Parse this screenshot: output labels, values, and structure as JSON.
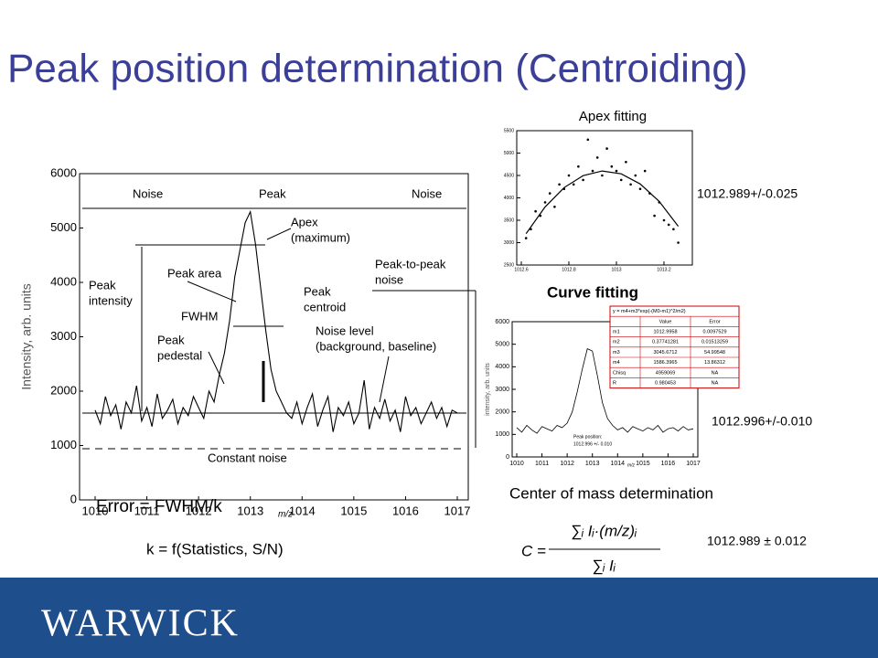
{
  "title": "Peak position determination (Centroiding)",
  "chart_data": [
    {
      "type": "line",
      "xlabel": "m/z",
      "ylabel": "Intensity, arb. units",
      "color": "#000000",
      "x": [
        1010,
        1010.1,
        1010.2,
        1010.3,
        1010.4,
        1010.5,
        1010.6,
        1010.7,
        1010.8,
        1010.9,
        1011,
        1011.1,
        1011.2,
        1011.3,
        1011.4,
        1011.5,
        1011.6,
        1011.7,
        1011.8,
        1011.9,
        1012,
        1012.1,
        1012.2,
        1012.3,
        1012.4,
        1012.5,
        1012.6,
        1012.7,
        1012.8,
        1012.9,
        1013,
        1013.1,
        1013.2,
        1013.3,
        1013.4,
        1013.5,
        1013.6,
        1013.7,
        1013.8,
        1013.9,
        1014,
        1014.1,
        1014.2,
        1014.3,
        1014.4,
        1014.5,
        1014.6,
        1014.7,
        1014.8,
        1014.9,
        1015,
        1015.1,
        1015.2,
        1015.3,
        1015.4,
        1015.5,
        1015.6,
        1015.7,
        1015.8,
        1015.9,
        1016,
        1016.1,
        1016.2,
        1016.3,
        1016.4,
        1016.5,
        1016.6,
        1016.7,
        1016.8,
        1016.9,
        1017
      ],
      "values": [
        1650,
        1400,
        1900,
        1550,
        1750,
        1300,
        1800,
        1600,
        2100,
        1450,
        1700,
        1350,
        1950,
        1500,
        1650,
        1850,
        1400,
        1700,
        1550,
        1900,
        1700,
        1500,
        2000,
        1800,
        2300,
        2700,
        3300,
        4100,
        4600,
        5100,
        5300,
        4700,
        3900,
        3100,
        2400,
        2000,
        1800,
        1600,
        1500,
        1800,
        1400,
        1700,
        1950,
        1350,
        1650,
        1900,
        1250,
        1700,
        1550,
        1800,
        1400,
        1600,
        2200,
        1300,
        1700,
        1500,
        1850,
        1450,
        1650,
        1250,
        1900,
        1550,
        1700,
        1400,
        1600,
        1800,
        1500,
        1700,
        1350,
        1650,
        1600
      ],
      "xlim": [
        1010,
        1017
      ],
      "xticks": [
        1010,
        1011,
        1012,
        1013,
        1014,
        1015,
        1016,
        1017
      ],
      "ylim": [
        0,
        6000
      ],
      "yticks": [
        0,
        1000,
        2000,
        3000,
        4000,
        5000,
        6000
      ],
      "annotations": [
        [
          "Noise"
        ],
        [
          "Peak"
        ],
        [
          "Noise"
        ],
        [
          "Apex",
          "(maximum)"
        ],
        [
          "Peak area"
        ],
        [
          "Peak",
          "intensity"
        ],
        [
          "FWHM"
        ],
        [
          "Peak",
          "centroid"
        ],
        [
          "Peak-to-peak",
          "noise"
        ],
        [
          "Noise level",
          "(background, baseline)"
        ],
        [
          "Peak",
          "pedestal"
        ],
        [
          "Constant noise"
        ]
      ]
    },
    {
      "type": "scatter",
      "title": "Apex fitting",
      "color": "#000000",
      "x": [
        1012.62,
        1012.64,
        1012.66,
        1012.68,
        1012.7,
        1012.72,
        1012.74,
        1012.76,
        1012.78,
        1012.8,
        1012.82,
        1012.84,
        1012.86,
        1012.88,
        1012.9,
        1012.92,
        1012.94,
        1012.96,
        1012.98,
        1013,
        1013.02,
        1013.04,
        1013.06,
        1013.08,
        1013.1,
        1013.12,
        1013.14,
        1013.16,
        1013.18,
        1013.2,
        1013.22,
        1013.24,
        1013.26
      ],
      "values": [
        3100,
        3300,
        3700,
        3600,
        3900,
        4100,
        3800,
        4300,
        4200,
        4500,
        4300,
        4700,
        4400,
        5300,
        4600,
        4900,
        4500,
        5100,
        4700,
        4600,
        4400,
        4800,
        4300,
        4500,
        4200,
        4600,
        4100,
        3600,
        3900,
        3500,
        3400,
        3300,
        3000
      ],
      "curve": {
        "x": [
          1012.62,
          1012.7,
          1012.78,
          1012.86,
          1012.94,
          1013.02,
          1013.1,
          1013.18,
          1013.26
        ],
        "values": [
          3200,
          3797,
          4228,
          4496,
          4599,
          4537,
          4311,
          3920,
          3365
        ]
      },
      "xlim": [
        1012.6,
        1013.3
      ],
      "xticks": [
        1012.6,
        1012.8,
        1013,
        1013.2
      ],
      "ylim": [
        2500,
        5500
      ],
      "yticks": [
        2500,
        3000,
        3500,
        4000,
        4500,
        5000,
        5500
      ]
    },
    {
      "type": "line",
      "title": "Curve fitting",
      "xlabel": "m/z",
      "ylabel": "intensity, arb. units",
      "color": "#000000",
      "x": [
        1010,
        1010.2,
        1010.4,
        1010.6,
        1010.8,
        1011,
        1011.2,
        1011.4,
        1011.6,
        1011.8,
        1012,
        1012.2,
        1012.4,
        1012.6,
        1012.8,
        1013,
        1013.2,
        1013.4,
        1013.6,
        1013.8,
        1014,
        1014.2,
        1014.4,
        1014.6,
        1014.8,
        1015,
        1015.2,
        1015.4,
        1015.6,
        1015.8,
        1016,
        1016.2,
        1016.4,
        1016.6,
        1016.8,
        1017
      ],
      "values": [
        1300,
        1100,
        1400,
        1200,
        1050,
        1350,
        1250,
        1150,
        1400,
        1300,
        1500,
        2000,
        2900,
        3900,
        4800,
        4700,
        3600,
        2400,
        1700,
        1400,
        1200,
        1300,
        1100,
        1350,
        1250,
        1150,
        1300,
        1200,
        1400,
        1100,
        1250,
        1300,
        1150,
        1350,
        1200,
        1250
      ],
      "xlim": [
        1010,
        1017
      ],
      "xticks": [
        1010,
        1011,
        1012,
        1013,
        1014,
        1015,
        1016,
        1017
      ],
      "ylim": [
        0,
        6000
      ],
      "yticks": [
        0,
        1000,
        2000,
        3000,
        4000,
        5000,
        6000
      ],
      "peak_position": [
        "Peak position:",
        "1012.996 +/- 0.010"
      ],
      "fit_table": {
        "equation": "y = m4+m3*exp(-(M0-m1)^2/m2)",
        "columns": [
          "Value",
          "Error"
        ],
        "rows": [
          [
            "m1",
            "1012.9958",
            "0.0097529"
          ],
          [
            "m2",
            "0.37741281",
            "0.01513259"
          ],
          [
            "m3",
            "3045.6712",
            "54.99548"
          ],
          [
            "m4",
            "1586.3965",
            "13.86312"
          ],
          [
            "Chisq",
            "4959069",
            "NA"
          ],
          [
            "R",
            "0.980453",
            "NA"
          ]
        ]
      }
    }
  ],
  "results": {
    "apex": "1012.989+/-0.025",
    "curve": "1012.996+/-0.010",
    "center": "1012.989 ± 0.012"
  },
  "error_text": "Error = FWHM/k",
  "k_text": "k = f(Statistics, S/N)",
  "center_of_mass": {
    "title": "Center of mass determination",
    "lhs": "C =",
    "numerator": "∑ᵢ Iᵢ·(m/z)ᵢ",
    "denominator": "∑ᵢ Iᵢ"
  },
  "footer": "WARWICK"
}
